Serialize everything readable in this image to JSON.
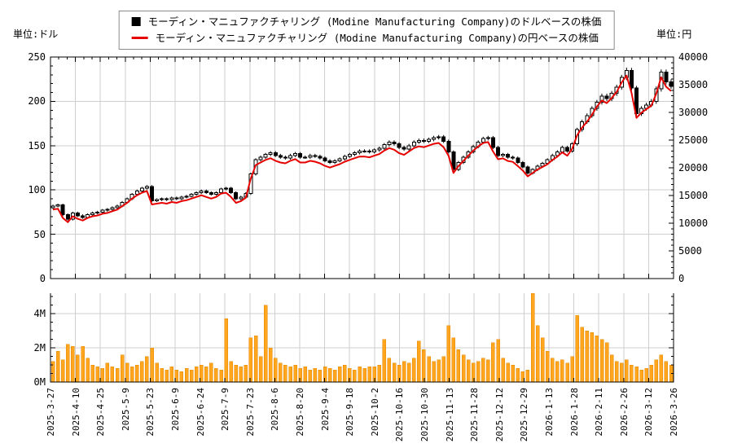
{
  "units": {
    "left": "単位:ドル",
    "right": "単位:円"
  },
  "legend": {
    "items": [
      {
        "marker": "black-square",
        "color": "#000000",
        "label": "モーディン・マニュファクチャリング (Modine Manufacturing Company)のドルベースの株価"
      },
      {
        "marker": "red-line",
        "color": "#e60000",
        "label": "モーディン・マニュファクチャリング (Modine Manufacturing Company)の円ベースの株価"
      }
    ]
  },
  "colors": {
    "candle_up_fill": "#ffffff",
    "candle_down_fill": "#000000",
    "candle_stroke": "#000000",
    "jpy_line": "#e60000",
    "volume_bar": "#ffa51e",
    "grid": "#cfcfcf",
    "axis": "#000000"
  },
  "axes": {
    "left": {
      "ticks": [
        0,
        50,
        100,
        150,
        200,
        250
      ],
      "range": [
        0,
        250
      ]
    },
    "right": {
      "ticks": [
        0,
        5000,
        10000,
        15000,
        20000,
        25000,
        30000,
        35000,
        40000
      ],
      "range": [
        0,
        40000
      ]
    },
    "volume": {
      "ticks": [
        0,
        2,
        4
      ],
      "tick_labels": [
        "0M",
        "2M",
        "4M"
      ],
      "range_millions": [
        0,
        5.2
      ]
    },
    "x": {
      "tick_labels": [
        "2025-3-27",
        "2025-4-10",
        "2025-4-25",
        "2025-5-9",
        "2025-5-23",
        "2025-6-9",
        "2025-6-24",
        "2025-7-9",
        "2025-7-23",
        "2025-8-6",
        "2025-8-20",
        "2025-9-4",
        "2025-9-18",
        "2025-10-2",
        "2025-10-16",
        "2025-10-30",
        "2025-11-13",
        "2025-11-28",
        "2025-12-12",
        "2025-12-29",
        "2026-1-13",
        "2026-1-28",
        "2026-2-11",
        "2026-2-26",
        "2026-3-12",
        "2026-3-26"
      ]
    }
  },
  "chart_data": [
    {
      "panel": "price",
      "type": "candlestick",
      "x_range": [
        "2025-3-27",
        "2026-3-26"
      ],
      "points": 126,
      "grid": true,
      "legend_position": "top-center",
      "series": [
        {
          "name": "モーディン・マニュファクチャリング (Modine Manufacturing Company)のドルベースの株価",
          "type": "candlestick",
          "axis": "left",
          "unit": "USD",
          "ylim": [
            0,
            250
          ],
          "close": [
            82,
            83,
            72,
            67,
            74,
            71,
            69,
            72,
            74,
            75,
            77,
            78,
            80,
            82,
            86,
            90,
            95,
            99,
            102,
            104,
            88,
            89,
            90,
            89,
            91,
            90,
            92,
            93,
            95,
            97,
            99,
            97,
            95,
            97,
            101,
            102,
            97,
            90,
            92,
            96,
            118,
            134,
            137,
            140,
            142,
            139,
            137,
            136,
            139,
            141,
            137,
            137,
            139,
            138,
            136,
            133,
            131,
            133,
            135,
            138,
            140,
            142,
            144,
            144,
            143,
            145,
            147,
            151,
            154,
            152,
            148,
            146,
            150,
            154,
            156,
            155,
            157,
            159,
            160,
            155,
            143,
            123,
            131,
            137,
            143,
            149,
            154,
            158,
            159,
            148,
            139,
            140,
            137,
            136,
            131,
            126,
            119,
            123,
            127,
            130,
            134,
            139,
            143,
            148,
            144,
            152,
            168,
            177,
            184,
            192,
            199,
            206,
            203,
            209,
            216,
            227,
            235,
            215,
            186,
            192,
            196,
            200,
            214,
            233,
            222,
            217
          ]
        },
        {
          "name": "モーディン・マニュファクチャリング (Modine Manufacturing Company)の円ベースの株価",
          "type": "line",
          "axis": "right",
          "unit": "JPY",
          "ylim": [
            0,
            40000
          ],
          "values": [
            12460,
            12620,
            10940,
            10180,
            11250,
            10790,
            10490,
            10940,
            11250,
            11400,
            11700,
            11860,
            12160,
            12460,
            13070,
            13680,
            14440,
            15050,
            15500,
            15810,
            13380,
            13530,
            13680,
            13530,
            13830,
            13680,
            13980,
            14140,
            14440,
            14740,
            15050,
            14740,
            14440,
            14740,
            15350,
            15500,
            14740,
            13680,
            13980,
            14590,
            18050,
            20500,
            20960,
            21420,
            21730,
            21270,
            20960,
            20810,
            21270,
            21570,
            20960,
            20960,
            21270,
            21110,
            20810,
            20350,
            20040,
            20350,
            20660,
            21110,
            21420,
            21730,
            22030,
            22030,
            21880,
            22190,
            22490,
            23100,
            23560,
            23260,
            22640,
            22340,
            22950,
            23560,
            23870,
            23720,
            24020,
            24330,
            24480,
            23720,
            22170,
            19070,
            20310,
            21240,
            22170,
            23100,
            23870,
            24490,
            24650,
            22940,
            21550,
            21700,
            21240,
            21080,
            20310,
            19530,
            18450,
            19070,
            19690,
            20150,
            20640,
            21410,
            22020,
            22790,
            22180,
            23410,
            25870,
            27260,
            28340,
            29570,
            31040,
            32140,
            31670,
            32600,
            33700,
            35410,
            36660,
            33540,
            29020,
            29950,
            30580,
            31200,
            33380,
            36350,
            34630,
            33850
          ]
        }
      ]
    },
    {
      "panel": "volume",
      "type": "bar",
      "unit": "M shares",
      "ylim_millions": [
        0,
        5.2
      ],
      "ytick_labels": [
        "0M",
        "2M",
        "4M"
      ],
      "grid": true,
      "values_millions": [
        1.2,
        1.8,
        1.3,
        2.2,
        2.1,
        1.6,
        2.1,
        1.4,
        1.0,
        0.9,
        0.8,
        1.1,
        0.9,
        0.8,
        1.6,
        1.1,
        0.9,
        1.0,
        1.2,
        1.5,
        2.0,
        1.1,
        0.8,
        0.7,
        0.9,
        0.7,
        0.6,
        0.8,
        0.7,
        0.9,
        1.0,
        0.9,
        1.1,
        0.8,
        0.7,
        3.7,
        1.2,
        1.0,
        0.9,
        1.0,
        2.6,
        2.7,
        1.5,
        4.5,
        2.0,
        1.4,
        1.1,
        1.0,
        0.9,
        1.0,
        0.8,
        0.9,
        0.7,
        0.8,
        0.7,
        0.9,
        0.8,
        0.7,
        0.9,
        1.0,
        0.8,
        0.7,
        0.9,
        0.8,
        0.9,
        0.9,
        1.0,
        2.5,
        1.4,
        1.1,
        1.0,
        1.2,
        1.1,
        1.4,
        2.4,
        1.9,
        1.5,
        1.2,
        1.3,
        1.5,
        3.3,
        2.6,
        1.9,
        1.6,
        1.3,
        1.1,
        1.2,
        1.4,
        1.3,
        2.3,
        2.5,
        1.4,
        1.1,
        1.0,
        0.8,
        0.6,
        0.7,
        5.4,
        3.3,
        2.6,
        1.8,
        1.4,
        1.2,
        1.3,
        1.1,
        1.5,
        3.9,
        3.2,
        3.0,
        2.9,
        2.7,
        2.5,
        2.3,
        1.6,
        1.2,
        1.1,
        1.3,
        1.0,
        0.9,
        0.7,
        0.8,
        1.0,
        1.3,
        1.6,
        1.2,
        1.0
      ]
    }
  ]
}
